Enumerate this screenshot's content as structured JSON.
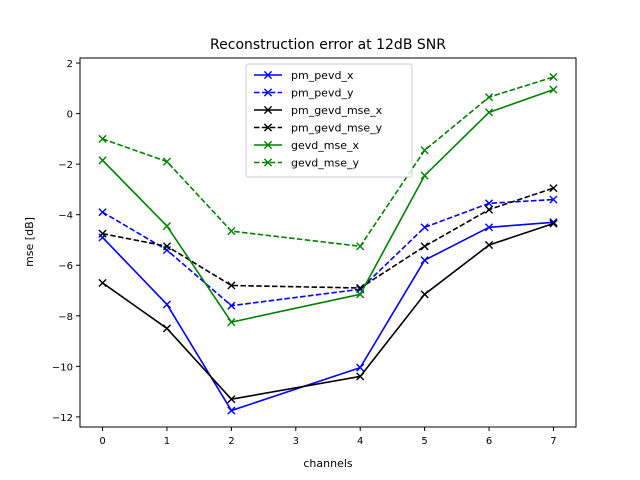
{
  "chart_data": {
    "type": "line",
    "title": "Reconstruction error at 12dB SNR",
    "xlabel": "channels",
    "ylabel": "mse [dB]",
    "xlim": [
      -0.35,
      7.35
    ],
    "ylim": [
      -12.4,
      2.2
    ],
    "xticks": [
      0,
      1,
      2,
      3,
      4,
      5,
      6,
      7
    ],
    "yticks": [
      2,
      0,
      -2,
      -4,
      -6,
      -8,
      -10,
      -12
    ],
    "ytick_labels": [
      "2",
      "0",
      "−2",
      "−4",
      "−6",
      "−8",
      "−10",
      "−12"
    ],
    "grid": false,
    "legend_position": "top-center",
    "x": [
      0,
      1,
      2,
      4,
      5,
      6,
      7
    ],
    "series": [
      {
        "name": "pm_pevd_x",
        "color": "#0000ff",
        "dash": "solid",
        "marker": "x",
        "values": [
          -4.9,
          -7.55,
          -11.75,
          -10.05,
          -5.8,
          -4.5,
          -4.3
        ]
      },
      {
        "name": "pm_pevd_y",
        "color": "#0000ff",
        "dash": "dashed",
        "marker": "x",
        "values": [
          -3.9,
          -5.4,
          -7.6,
          -6.95,
          -4.5,
          -3.55,
          -3.4
        ]
      },
      {
        "name": "pm_gevd_mse_x",
        "color": "#000000",
        "dash": "solid",
        "marker": "x",
        "values": [
          -6.7,
          -8.5,
          -11.3,
          -10.4,
          -7.15,
          -5.2,
          -4.35
        ]
      },
      {
        "name": "pm_gevd_mse_y",
        "color": "#000000",
        "dash": "dashed",
        "marker": "x",
        "values": [
          -4.75,
          -5.25,
          -6.8,
          -6.9,
          -5.25,
          -3.8,
          -2.95
        ]
      },
      {
        "name": "gevd_mse_x",
        "color": "#008000",
        "dash": "solid",
        "marker": "x",
        "values": [
          -1.85,
          -4.45,
          -8.25,
          -7.15,
          -2.45,
          0.05,
          0.95
        ]
      },
      {
        "name": "gevd_mse_y",
        "color": "#008000",
        "dash": "dashed",
        "marker": "x",
        "values": [
          -1.0,
          -1.9,
          -4.65,
          -5.25,
          -1.45,
          0.65,
          1.45
        ]
      }
    ]
  }
}
